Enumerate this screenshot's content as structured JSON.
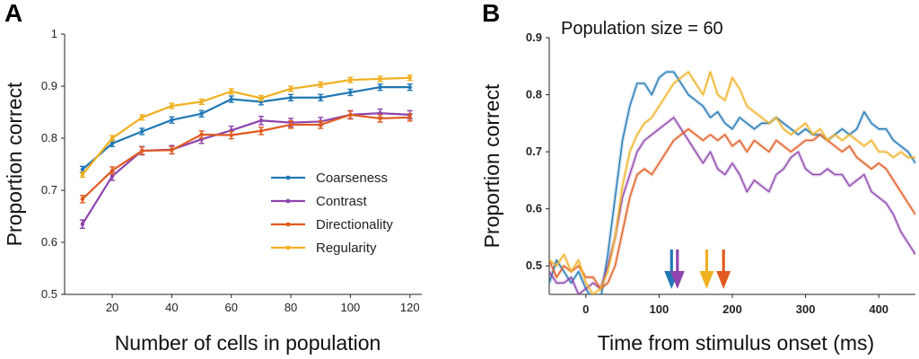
{
  "chart_data": [
    {
      "panel_label": "A",
      "type": "line",
      "xlabel": "Number of cells in population",
      "ylabel": "Proportion correct",
      "xlim": [
        4,
        124
      ],
      "ylim": [
        0.5,
        1.0
      ],
      "xticks": [
        20,
        40,
        60,
        80,
        100,
        120
      ],
      "yticks": [
        0.5,
        0.6,
        0.7,
        0.8,
        0.9,
        1
      ],
      "ytick_labels": [
        "0.5",
        "0.6",
        "0.7",
        "0.8",
        "0.9",
        "1"
      ],
      "grid": false,
      "legend_position": "bottom-right",
      "x": [
        10,
        20,
        30,
        40,
        50,
        60,
        70,
        80,
        90,
        100,
        110,
        120
      ],
      "series": [
        {
          "name": "Coarseness",
          "color": "#1f77b4",
          "values": [
            0.74,
            0.79,
            0.813,
            0.835,
            0.847,
            0.875,
            0.87,
            0.878,
            0.878,
            0.888,
            0.898,
            0.898
          ],
          "error": 0.006
        },
        {
          "name": "Contrast",
          "color": "#8e44ad",
          "values": [
            0.635,
            0.727,
            0.776,
            0.778,
            0.798,
            0.815,
            0.834,
            0.83,
            0.832,
            0.845,
            0.848,
            0.845
          ],
          "error": 0.008
        },
        {
          "name": "Directionality",
          "color": "#e05a1e",
          "values": [
            0.683,
            0.738,
            0.776,
            0.777,
            0.807,
            0.806,
            0.814,
            0.826,
            0.826,
            0.845,
            0.838,
            0.84
          ],
          "error": 0.007
        },
        {
          "name": "Regularity",
          "color": "#f0b020",
          "values": [
            0.73,
            0.8,
            0.84,
            0.862,
            0.87,
            0.89,
            0.877,
            0.895,
            0.903,
            0.912,
            0.914,
            0.916
          ],
          "error": 0.005
        }
      ]
    },
    {
      "panel_label": "B",
      "type": "line",
      "xlabel": "Time from stimulus onset (ms)",
      "ylabel": "Proportion correct",
      "annotation": "Population size = 60",
      "xlim": [
        -50,
        450
      ],
      "ylim": [
        0.45,
        0.9
      ],
      "xticks": [
        0,
        100,
        200,
        300,
        400
      ],
      "yticks": [
        0.5,
        0.6,
        0.7,
        0.8,
        0.9
      ],
      "ytick_labels": [
        "0.5",
        "0.6",
        "0.7",
        "0.8",
        "0.9"
      ],
      "grid": false,
      "x": [
        -50,
        -40,
        -30,
        -20,
        -10,
        0,
        10,
        20,
        30,
        40,
        50,
        60,
        70,
        80,
        90,
        100,
        110,
        120,
        130,
        140,
        150,
        160,
        170,
        180,
        190,
        200,
        210,
        220,
        230,
        240,
        250,
        260,
        270,
        280,
        290,
        300,
        310,
        320,
        330,
        340,
        350,
        360,
        370,
        380,
        390,
        400,
        410,
        420,
        430,
        440,
        450
      ],
      "series": [
        {
          "name": "Coarseness",
          "color": "#1f77b4",
          "values": [
            0.47,
            0.51,
            0.49,
            0.47,
            0.49,
            0.46,
            0.44,
            0.44,
            0.52,
            0.62,
            0.72,
            0.78,
            0.82,
            0.82,
            0.8,
            0.83,
            0.84,
            0.84,
            0.82,
            0.8,
            0.79,
            0.78,
            0.76,
            0.77,
            0.75,
            0.74,
            0.76,
            0.75,
            0.74,
            0.75,
            0.75,
            0.76,
            0.75,
            0.74,
            0.73,
            0.74,
            0.73,
            0.73,
            0.72,
            0.73,
            0.74,
            0.73,
            0.74,
            0.77,
            0.75,
            0.74,
            0.74,
            0.72,
            0.71,
            0.7,
            0.68
          ]
        },
        {
          "name": "Contrast",
          "color": "#8e44ad",
          "values": [
            0.49,
            0.47,
            0.47,
            0.48,
            0.45,
            0.46,
            0.47,
            0.46,
            0.5,
            0.55,
            0.62,
            0.66,
            0.7,
            0.72,
            0.73,
            0.74,
            0.75,
            0.76,
            0.74,
            0.72,
            0.7,
            0.68,
            0.7,
            0.67,
            0.66,
            0.68,
            0.66,
            0.63,
            0.65,
            0.64,
            0.63,
            0.66,
            0.67,
            0.69,
            0.7,
            0.67,
            0.66,
            0.66,
            0.67,
            0.66,
            0.66,
            0.64,
            0.65,
            0.66,
            0.63,
            0.62,
            0.61,
            0.59,
            0.56,
            0.54,
            0.52
          ]
        },
        {
          "name": "Directionality",
          "color": "#e05a1e",
          "values": [
            0.51,
            0.48,
            0.5,
            0.49,
            0.5,
            0.48,
            0.48,
            0.46,
            0.47,
            0.5,
            0.56,
            0.62,
            0.66,
            0.67,
            0.66,
            0.68,
            0.7,
            0.72,
            0.73,
            0.74,
            0.73,
            0.72,
            0.73,
            0.72,
            0.73,
            0.71,
            0.72,
            0.7,
            0.72,
            0.71,
            0.7,
            0.72,
            0.71,
            0.7,
            0.71,
            0.72,
            0.72,
            0.73,
            0.72,
            0.71,
            0.7,
            0.71,
            0.69,
            0.68,
            0.67,
            0.68,
            0.67,
            0.65,
            0.63,
            0.61,
            0.59
          ]
        },
        {
          "name": "Regularity",
          "color": "#f0b020",
          "values": [
            0.51,
            0.5,
            0.52,
            0.49,
            0.51,
            0.47,
            0.45,
            0.46,
            0.49,
            0.55,
            0.64,
            0.7,
            0.73,
            0.75,
            0.76,
            0.78,
            0.8,
            0.82,
            0.83,
            0.84,
            0.82,
            0.8,
            0.84,
            0.8,
            0.79,
            0.83,
            0.81,
            0.78,
            0.77,
            0.76,
            0.75,
            0.76,
            0.74,
            0.73,
            0.74,
            0.75,
            0.73,
            0.74,
            0.72,
            0.73,
            0.72,
            0.73,
            0.72,
            0.71,
            0.72,
            0.7,
            0.7,
            0.69,
            0.7,
            0.69,
            0.69
          ]
        }
      ],
      "arrows": [
        {
          "series": "Coarseness",
          "x": 117,
          "color": "#1f77b4"
        },
        {
          "series": "Contrast",
          "x": 125,
          "color": "#8e44ad"
        },
        {
          "series": "Regularity",
          "x": 165,
          "color": "#f0b020"
        },
        {
          "series": "Directionality",
          "x": 188,
          "color": "#e05a1e"
        }
      ]
    }
  ]
}
